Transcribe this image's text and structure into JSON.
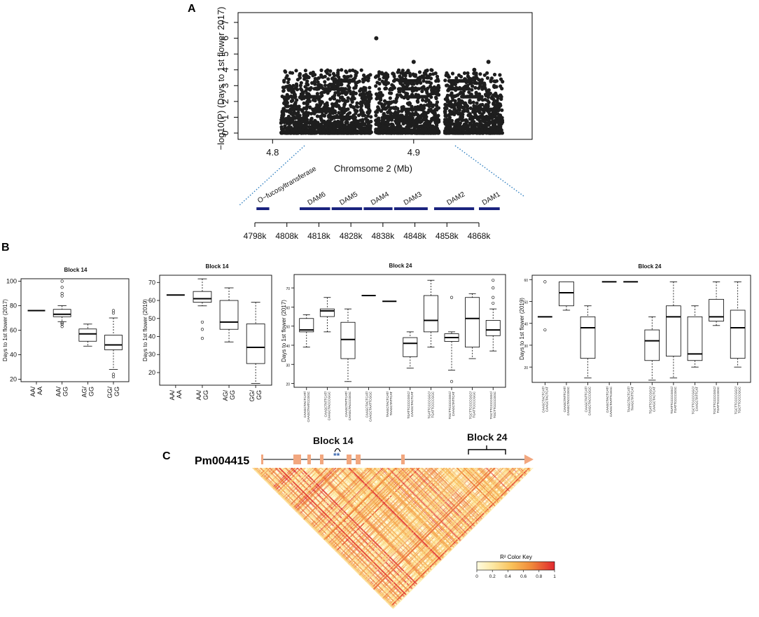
{
  "panels": {
    "a": {
      "letter": "A"
    },
    "b": {
      "letter": "B"
    },
    "c": {
      "letter": "C"
    }
  },
  "colors": {
    "points": "#1e1e1e",
    "gene_bar": "#1a237e",
    "dotted": "#2f7fc0",
    "exon": "#f2a77f",
    "ld_low": "#fffbe0",
    "ld_mid": "#f7a23a",
    "ld_high": "#e0282f"
  },
  "chart_data": [
    {
      "id": "manhattan",
      "type": "scatter",
      "title": "",
      "xlabel": "Chromsome 2 (Mb)",
      "ylabel": "−log10(P) (Days to 1st flower 2017)",
      "xlim": [
        4.78,
        4.98
      ],
      "ylim": [
        0,
        7
      ],
      "xticks": [
        4.8,
        4.9
      ],
      "xtick_labels": [
        "4.8",
        "4.9"
      ],
      "yticks": [
        0,
        1,
        2,
        3,
        4,
        5,
        6,
        7
      ],
      "ytick_labels": [
        "0",
        "1",
        "2",
        "3",
        "4",
        "5",
        "6",
        "7"
      ],
      "dense_clusters": [
        {
          "x_start": 4.806,
          "x_end": 4.87,
          "y_max": 4.0
        },
        {
          "x_start": 4.873,
          "x_end": 4.918,
          "y_max": 4.0
        },
        {
          "x_start": 4.922,
          "x_end": 4.963,
          "y_max": 3.8
        }
      ],
      "highlight_points": [
        {
          "x": 4.8735,
          "y": 6.0
        },
        {
          "x": 4.9,
          "y": 4.5
        },
        {
          "x": 4.953,
          "y": 4.5
        },
        {
          "x": 4.943,
          "y": 4.0
        }
      ]
    },
    {
      "id": "gene_track",
      "type": "diagram",
      "axis_ticks": [
        4798,
        4808,
        4818,
        4828,
        4838,
        4848,
        4858,
        4868
      ],
      "axis_tick_labels": [
        "4798k",
        "4808k",
        "4818k",
        "4828k",
        "4838k",
        "4848k",
        "4858k",
        "4868k"
      ],
      "genes": [
        {
          "name": "O−fucosyltransferase",
          "start": 4798.5,
          "end": 4802.5
        },
        {
          "name": "DAM6",
          "start": 4812,
          "end": 4821.5
        },
        {
          "name": "DAM5",
          "start": 4822,
          "end": 4831.5
        },
        {
          "name": "DAM4",
          "start": 4832,
          "end": 4841
        },
        {
          "name": "DAM3",
          "start": 4841.5,
          "end": 4852
        },
        {
          "name": "DAM2",
          "start": 4854,
          "end": 4866.5
        },
        {
          "name": "DAM1",
          "start": 4868,
          "end": 4874.5
        }
      ]
    },
    {
      "id": "box1",
      "type": "box",
      "title": "Block 14",
      "ylabel": "Days to 1st flower (2017)",
      "ylim": [
        18,
        102
      ],
      "yticks": [
        20,
        40,
        60,
        80,
        100
      ],
      "ytick_labels": [
        "20",
        "40",
        "60",
        "80",
        "100"
      ],
      "categories": [
        [
          "AA/",
          "AA"
        ],
        [
          "AA/",
          "GG"
        ],
        [
          "AG/",
          "GG"
        ],
        [
          "GG/",
          "GG"
        ]
      ],
      "boxes": [
        {
          "median": 76
        },
        {
          "q1": 71,
          "median": 73,
          "q3": 77,
          "wlo": 67,
          "whi": 80,
          "outliers": [
            63,
            65,
            66,
            88,
            90,
            95,
            100
          ]
        },
        {
          "q1": 51,
          "median": 57,
          "q3": 61,
          "wlo": 47,
          "whi": 65,
          "outliers": []
        },
        {
          "q1": 44,
          "median": 48,
          "q3": 56,
          "wlo": 28,
          "whi": 70,
          "outliers": [
            22,
            24,
            74,
            76
          ]
        }
      ]
    },
    {
      "id": "box2",
      "type": "box",
      "title": "Block 14",
      "ylabel": "Days to 1st flower (2019)",
      "ylim": [
        13,
        74
      ],
      "yticks": [
        20,
        30,
        40,
        50,
        60,
        70
      ],
      "ytick_labels": [
        "20",
        "30",
        "40",
        "50",
        "60",
        "70"
      ],
      "categories": [
        [
          "AA/",
          "AA"
        ],
        [
          "AA/",
          "GG"
        ],
        [
          "AG/",
          "GG"
        ],
        [
          "GG/",
          "GG"
        ]
      ],
      "boxes": [
        {
          "median": 63
        },
        {
          "q1": 59,
          "median": 61,
          "q3": 65,
          "wlo": 57,
          "whi": 72,
          "outliers": [
            39,
            44,
            48
          ]
        },
        {
          "q1": 44,
          "median": 48,
          "q3": 60,
          "wlo": 37,
          "whi": 67,
          "outliers": []
        },
        {
          "q1": 25,
          "median": 34,
          "q3": 47,
          "wlo": 14,
          "whi": 59,
          "outliers": []
        }
      ]
    },
    {
      "id": "box3",
      "type": "box",
      "title": "Block 24",
      "ylabel": "Days to 1st flower (2017)",
      "ylim": [
        18,
        77
      ],
      "yticks": [
        20,
        30,
        40,
        50,
        60,
        70
      ],
      "ytick_labels": [
        "20",
        "30",
        "40",
        "50",
        "60",
        "70"
      ],
      "categories": [
        [
          "CAAGCTACTCAT/",
          "CAAGCTAATCCGGC"
        ],
        [
          "CAAGCTATTCAT/",
          "CAAGCTACCCGGC"
        ],
        [
          "CAAGCTATTCAT/",
          "CAAGCTACCCGGC"
        ],
        [
          "CAAGCTACTCAT/",
          "CAAGCTAATTCGGC"
        ],
        [
          "TAAGCTACTCAT/",
          "TAAGCTATTCAT"
        ],
        [
          "TGATTCCCCGGC/",
          "CAAGCTACTCAT"
        ],
        [
          "TGATTCCCCGGC/",
          "TGATTCCCCGGC"
        ],
        [
          "TGCTTCCCCGGC/",
          "CAAGCTATTCAT"
        ],
        [
          "TGCTTCCCCGGC/",
          "TGATTCCCCGGC"
        ],
        [
          "TGCTTCCCCGGC/",
          "TGCTTCCCCGGC"
        ]
      ],
      "boxes": [
        {
          "q1": 47,
          "median": 48,
          "q3": 54,
          "wlo": 39,
          "whi": 56,
          "outliers": []
        },
        {
          "q1": 55,
          "median": 58,
          "q3": 59,
          "wlo": 47,
          "whi": 65,
          "outliers": []
        },
        {
          "q1": 33,
          "median": 43,
          "q3": 52,
          "wlo": 21,
          "whi": 59,
          "outliers": []
        },
        {
          "median": 66
        },
        {
          "median": 63
        },
        {
          "q1": 34,
          "median": 41,
          "q3": 44,
          "wlo": 28,
          "whi": 47,
          "outliers": []
        },
        {
          "q1": 47,
          "median": 53,
          "q3": 66,
          "wlo": 39,
          "whi": 74,
          "outliers": []
        },
        {
          "q1": 42,
          "median": 44,
          "q3": 46,
          "wlo": 27,
          "whi": 47,
          "outliers": [
            21,
            65
          ]
        },
        {
          "q1": 39,
          "median": 54,
          "q3": 65,
          "wlo": 33,
          "whi": 67,
          "outliers": []
        },
        {
          "q1": 45,
          "median": 48,
          "q3": 53,
          "wlo": 37,
          "whi": 59,
          "outliers": [
            62,
            65,
            70,
            74
          ]
        }
      ]
    },
    {
      "id": "box4",
      "type": "box",
      "title": "Block 24",
      "ylabel": "Days to 1st flower (2019)",
      "ylim": [
        13,
        62
      ],
      "yticks": [
        20,
        30,
        40,
        50,
        60
      ],
      "ytick_labels": [
        "20",
        "30",
        "40",
        "50",
        "60"
      ],
      "categories": [
        [
          "CAAGCTACTCAT/",
          "CAAGCTACTCAT"
        ],
        [
          "CAAGCTATTCAT/",
          "CAAGCTACCCGGC"
        ],
        [
          "CAAGCTATTCAT/",
          "CAAGCTACCCGGC"
        ],
        [
          "CAAGCTACTCAT/",
          "CAAGCTAATTCGGC"
        ],
        [
          "TAAGCTACTCAT/",
          "TAAGCTATTCAT"
        ],
        [
          "TGATTCCCCGGC/",
          "CAAGCTACTCAT"
        ],
        [
          "TGATTCCCCGGC/",
          "TGATTCCCCGGC"
        ],
        [
          "TGCTTCCCCGGC/",
          "CAAGCTATTCAT"
        ],
        [
          "TGCTTCCCCGGC/",
          "TGATTCCCCGGC"
        ],
        [
          "TGCTTCCCCGGC/",
          "TGCTTCCCCGGC"
        ]
      ],
      "boxes": [
        {
          "median": 43,
          "outliers": [
            37,
            59
          ]
        },
        {
          "q1": 48,
          "median": 54,
          "q3": 59,
          "wlo": 46,
          "whi": 59,
          "outliers": []
        },
        {
          "q1": 24,
          "median": 38,
          "q3": 43,
          "wlo": 15,
          "whi": 48,
          "outliers": []
        },
        {
          "median": 59
        },
        {
          "median": 59
        },
        {
          "q1": 23,
          "median": 32,
          "q3": 37,
          "wlo": 14,
          "whi": 43,
          "outliers": []
        },
        {
          "q1": 25,
          "median": 43,
          "q3": 48,
          "wlo": 15,
          "whi": 59,
          "outliers": []
        },
        {
          "q1": 23,
          "median": 26,
          "q3": 43,
          "wlo": 20,
          "whi": 48,
          "outliers": []
        },
        {
          "q1": 41,
          "median": 43,
          "q3": 51,
          "wlo": 39,
          "whi": 59,
          "outliers": []
        },
        {
          "q1": 24,
          "median": 38,
          "q3": 46,
          "wlo": 20,
          "whi": 59,
          "outliers": []
        }
      ]
    },
    {
      "id": "ld_heatmap",
      "type": "heatmap",
      "gene_name": "Pm004415",
      "block_labels": [
        "Block 14",
        "Block 24"
      ],
      "markers": [
        "**"
      ],
      "color_key_title": "R² Color Key",
      "color_key_ticks": [
        0,
        0.2,
        0.4,
        0.6,
        0.8,
        1
      ],
      "color_key_tick_labels": [
        "0",
        "0.2",
        "0.4",
        "0.6",
        "0.8",
        "1"
      ],
      "value_range": [
        0,
        1
      ]
    }
  ]
}
